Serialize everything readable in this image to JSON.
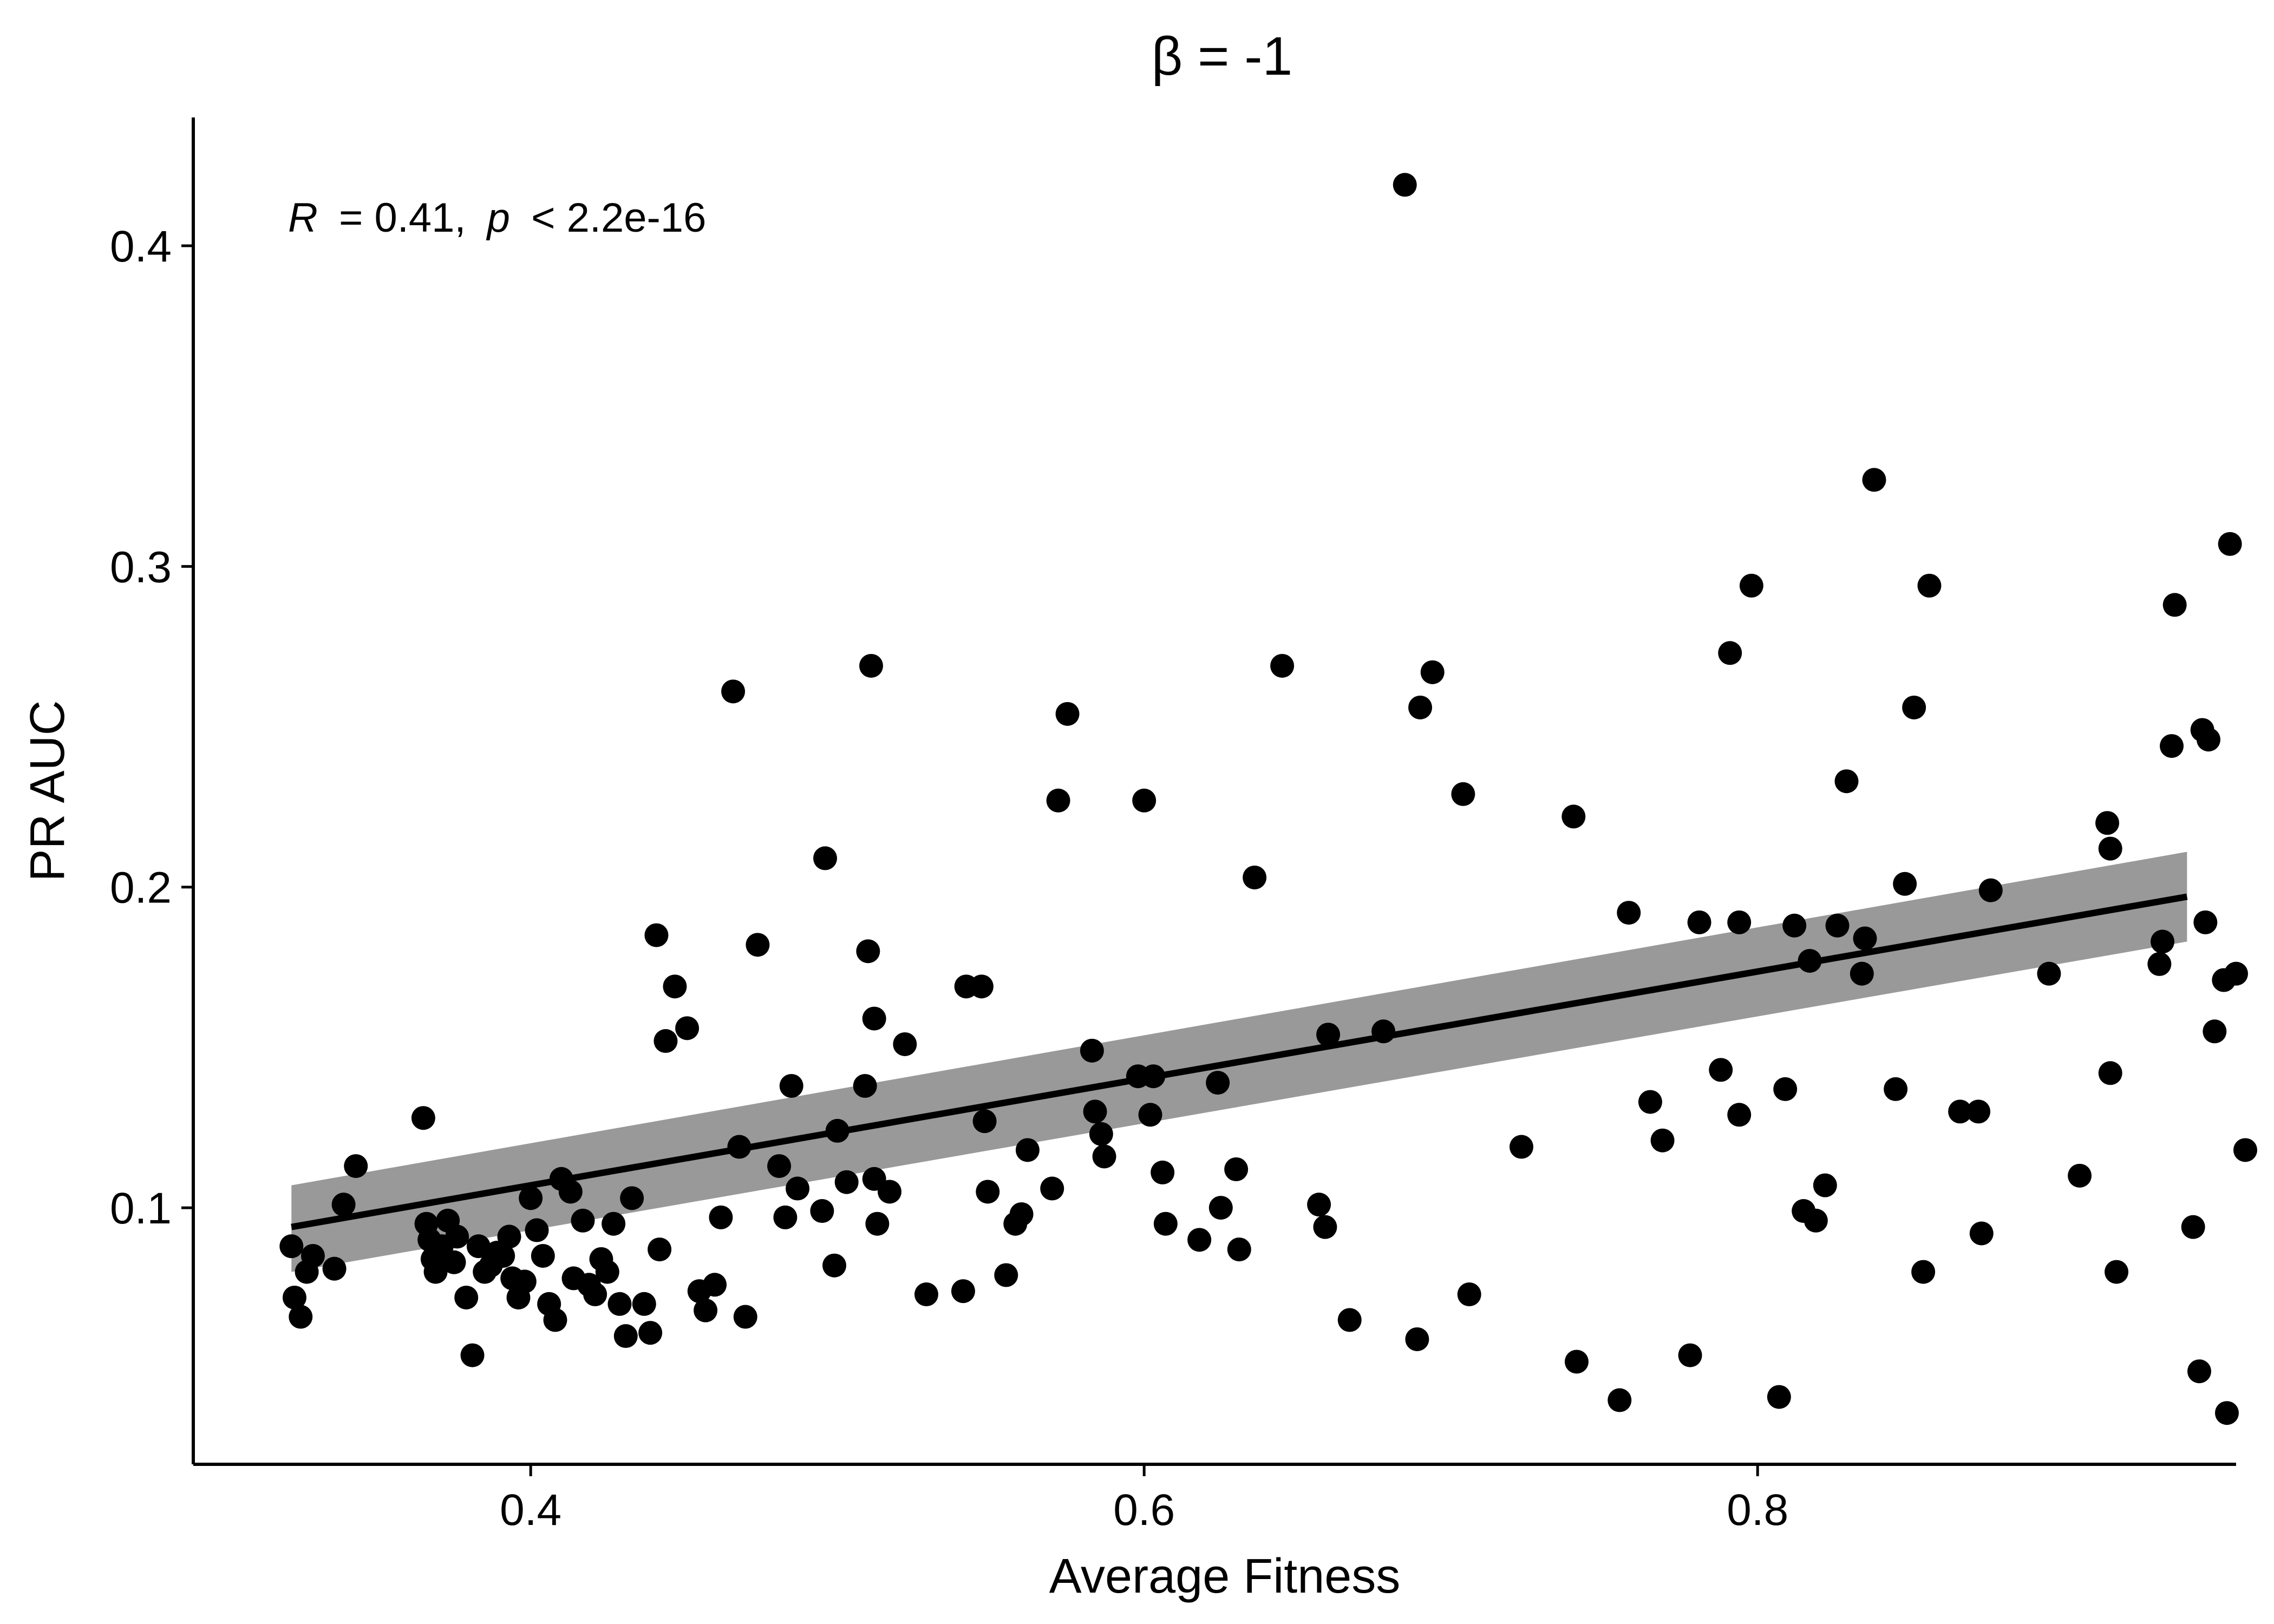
{
  "chart_data": {
    "type": "scatter",
    "title": "β = -1",
    "xlabel": "Average Fitness",
    "ylabel": "PR AUC",
    "xlim": [
      0.29,
      0.956
    ],
    "ylim": [
      0.02,
      0.44
    ],
    "x_ticks": [
      0.4,
      0.6,
      0.8
    ],
    "x_tick_labels": [
      "0.4",
      "0.6",
      "0.8"
    ],
    "y_ticks": [
      0.1,
      0.2,
      0.3,
      0.4
    ],
    "y_tick_labels": [
      "0.1",
      "0.2",
      "0.3",
      "0.4"
    ],
    "grid": false,
    "legend": "none",
    "annotation": {
      "r_symbol": "R",
      "r_text": "= 0.41,",
      "p_symbol": "p",
      "p_text": "< 2.2e-16"
    },
    "regression": {
      "x_range": [
        0.322,
        0.94
      ],
      "line_y": [
        0.094,
        0.197
      ],
      "ci_low": [
        0.08,
        0.183
      ],
      "ci_high": [
        0.107,
        0.211
      ]
    },
    "points": [
      [
        0.322,
        0.088
      ],
      [
        0.323,
        0.072
      ],
      [
        0.325,
        0.066
      ],
      [
        0.327,
        0.08
      ],
      [
        0.329,
        0.085
      ],
      [
        0.336,
        0.081
      ],
      [
        0.339,
        0.101
      ],
      [
        0.343,
        0.113
      ],
      [
        0.365,
        0.128
      ],
      [
        0.366,
        0.095
      ],
      [
        0.367,
        0.09
      ],
      [
        0.368,
        0.084
      ],
      [
        0.369,
        0.08
      ],
      [
        0.371,
        0.088
      ],
      [
        0.373,
        0.096
      ],
      [
        0.375,
        0.083
      ],
      [
        0.376,
        0.091
      ],
      [
        0.379,
        0.072
      ],
      [
        0.381,
        0.054
      ],
      [
        0.383,
        0.088
      ],
      [
        0.385,
        0.08
      ],
      [
        0.387,
        0.082
      ],
      [
        0.389,
        0.086
      ],
      [
        0.391,
        0.085
      ],
      [
        0.393,
        0.091
      ],
      [
        0.394,
        0.078
      ],
      [
        0.396,
        0.072
      ],
      [
        0.398,
        0.077
      ],
      [
        0.4,
        0.103
      ],
      [
        0.402,
        0.093
      ],
      [
        0.404,
        0.085
      ],
      [
        0.406,
        0.07
      ],
      [
        0.408,
        0.065
      ],
      [
        0.41,
        0.109
      ],
      [
        0.413,
        0.105
      ],
      [
        0.414,
        0.078
      ],
      [
        0.417,
        0.096
      ],
      [
        0.419,
        0.076
      ],
      [
        0.421,
        0.073
      ],
      [
        0.423,
        0.084
      ],
      [
        0.425,
        0.08
      ],
      [
        0.427,
        0.095
      ],
      [
        0.429,
        0.07
      ],
      [
        0.431,
        0.06
      ],
      [
        0.433,
        0.103
      ],
      [
        0.437,
        0.07
      ],
      [
        0.439,
        0.061
      ],
      [
        0.441,
        0.185
      ],
      [
        0.442,
        0.087
      ],
      [
        0.444,
        0.152
      ],
      [
        0.447,
        0.169
      ],
      [
        0.451,
        0.156
      ],
      [
        0.455,
        0.074
      ],
      [
        0.457,
        0.068
      ],
      [
        0.46,
        0.076
      ],
      [
        0.462,
        0.097
      ],
      [
        0.466,
        0.261
      ],
      [
        0.468,
        0.119
      ],
      [
        0.47,
        0.066
      ],
      [
        0.474,
        0.182
      ],
      [
        0.481,
        0.113
      ],
      [
        0.483,
        0.097
      ],
      [
        0.485,
        0.138
      ],
      [
        0.487,
        0.106
      ],
      [
        0.495,
        0.099
      ],
      [
        0.496,
        0.209
      ],
      [
        0.499,
        0.082
      ],
      [
        0.5,
        0.124
      ],
      [
        0.503,
        0.108
      ],
      [
        0.509,
        0.138
      ],
      [
        0.51,
        0.18
      ],
      [
        0.511,
        0.269
      ],
      [
        0.512,
        0.109
      ],
      [
        0.512,
        0.159
      ],
      [
        0.513,
        0.095
      ],
      [
        0.517,
        0.105
      ],
      [
        0.522,
        0.151
      ],
      [
        0.529,
        0.073
      ],
      [
        0.541,
        0.074
      ],
      [
        0.542,
        0.169
      ],
      [
        0.547,
        0.169
      ],
      [
        0.548,
        0.127
      ],
      [
        0.549,
        0.105
      ],
      [
        0.555,
        0.079
      ],
      [
        0.558,
        0.095
      ],
      [
        0.56,
        0.098
      ],
      [
        0.562,
        0.118
      ],
      [
        0.57,
        0.106
      ],
      [
        0.572,
        0.227
      ],
      [
        0.575,
        0.254
      ],
      [
        0.583,
        0.149
      ],
      [
        0.584,
        0.13
      ],
      [
        0.586,
        0.123
      ],
      [
        0.587,
        0.116
      ],
      [
        0.598,
        0.141
      ],
      [
        0.6,
        0.227
      ],
      [
        0.602,
        0.129
      ],
      [
        0.603,
        0.141
      ],
      [
        0.606,
        0.111
      ],
      [
        0.607,
        0.095
      ],
      [
        0.618,
        0.09
      ],
      [
        0.624,
        0.139
      ],
      [
        0.625,
        0.1
      ],
      [
        0.63,
        0.112
      ],
      [
        0.631,
        0.087
      ],
      [
        0.636,
        0.203
      ],
      [
        0.645,
        0.269
      ],
      [
        0.657,
        0.101
      ],
      [
        0.659,
        0.094
      ],
      [
        0.66,
        0.154
      ],
      [
        0.667,
        0.065
      ],
      [
        0.678,
        0.155
      ],
      [
        0.685,
        0.419
      ],
      [
        0.689,
        0.059
      ],
      [
        0.69,
        0.256
      ],
      [
        0.694,
        0.267
      ],
      [
        0.704,
        0.229
      ],
      [
        0.706,
        0.073
      ],
      [
        0.723,
        0.119
      ],
      [
        0.74,
        0.222
      ],
      [
        0.741,
        0.052
      ],
      [
        0.755,
        0.04
      ],
      [
        0.758,
        0.192
      ],
      [
        0.765,
        0.133
      ],
      [
        0.769,
        0.121
      ],
      [
        0.778,
        0.054
      ],
      [
        0.781,
        0.189
      ],
      [
        0.788,
        0.143
      ],
      [
        0.791,
        0.273
      ],
      [
        0.794,
        0.189
      ],
      [
        0.794,
        0.129
      ],
      [
        0.798,
        0.294
      ],
      [
        0.807,
        0.041
      ],
      [
        0.809,
        0.137
      ],
      [
        0.812,
        0.188
      ],
      [
        0.815,
        0.099
      ],
      [
        0.817,
        0.177
      ],
      [
        0.819,
        0.096
      ],
      [
        0.822,
        0.107
      ],
      [
        0.826,
        0.188
      ],
      [
        0.829,
        0.233
      ],
      [
        0.834,
        0.173
      ],
      [
        0.835,
        0.184
      ],
      [
        0.838,
        0.327
      ],
      [
        0.845,
        0.137
      ],
      [
        0.848,
        0.201
      ],
      [
        0.851,
        0.256
      ],
      [
        0.854,
        0.08
      ],
      [
        0.856,
        0.294
      ],
      [
        0.866,
        0.13
      ],
      [
        0.872,
        0.13
      ],
      [
        0.873,
        0.092
      ],
      [
        0.876,
        0.199
      ],
      [
        0.895,
        0.173
      ],
      [
        0.905,
        0.11
      ],
      [
        0.914,
        0.22
      ],
      [
        0.915,
        0.212
      ],
      [
        0.915,
        0.142
      ],
      [
        0.917,
        0.08
      ],
      [
        0.931,
        0.176
      ],
      [
        0.932,
        0.183
      ],
      [
        0.935,
        0.244
      ],
      [
        0.936,
        0.288
      ],
      [
        0.942,
        0.094
      ],
      [
        0.944,
        0.049
      ],
      [
        0.945,
        0.249
      ],
      [
        0.946,
        0.189
      ],
      [
        0.947,
        0.246
      ],
      [
        0.949,
        0.155
      ],
      [
        0.952,
        0.171
      ],
      [
        0.953,
        0.036
      ],
      [
        0.954,
        0.307
      ],
      [
        0.956,
        0.173
      ],
      [
        0.959,
        0.118
      ]
    ]
  }
}
